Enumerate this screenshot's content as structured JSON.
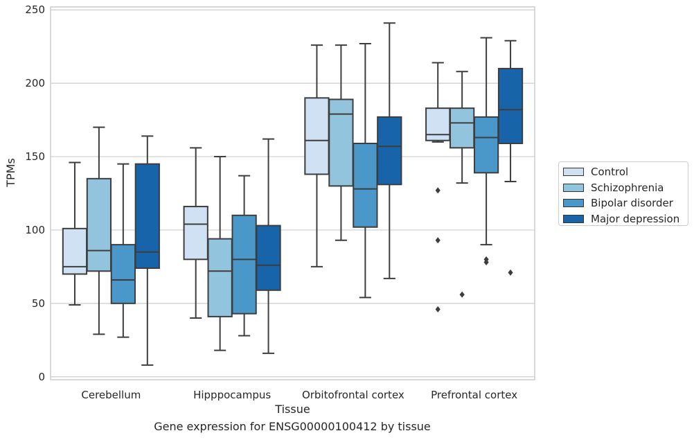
{
  "chart_data": {
    "type": "boxplot",
    "caption": "Gene expression for ENSG00000100412 by tissue",
    "xlabel": "Tissue",
    "ylabel": "TPMs",
    "ylim": [
      -2,
      252
    ],
    "yticks": [
      0,
      50,
      100,
      150,
      200,
      250
    ],
    "grid": "horizontal",
    "legend_position": "right",
    "categories": [
      "Cerebellum",
      "Hipppocampus",
      "Orbitofrontal cortex",
      "Prefrontal cortex"
    ],
    "series": [
      {
        "name": "Control",
        "color": "#cfe1f2",
        "boxes": [
          {
            "whislo": 49,
            "q1": 70,
            "med": 75,
            "q3": 101,
            "whishi": 146,
            "fliers": []
          },
          {
            "whislo": 40,
            "q1": 80,
            "med": 104,
            "q3": 116,
            "whishi": 156,
            "fliers": []
          },
          {
            "whislo": 75,
            "q1": 138,
            "med": 161,
            "q3": 190,
            "whishi": 226,
            "fliers": []
          },
          {
            "whislo": 160,
            "q1": 161,
            "med": 165,
            "q3": 183,
            "whishi": 214,
            "fliers": [
              127,
              93,
              46
            ]
          }
        ]
      },
      {
        "name": "Schizophrenia",
        "color": "#93c4de",
        "boxes": [
          {
            "whislo": 29,
            "q1": 72,
            "med": 86,
            "q3": 135,
            "whishi": 170,
            "fliers": []
          },
          {
            "whislo": 18,
            "q1": 41,
            "med": 72,
            "q3": 94,
            "whishi": 150,
            "fliers": []
          },
          {
            "whislo": 93,
            "q1": 130,
            "med": 179,
            "q3": 189,
            "whishi": 226,
            "fliers": []
          },
          {
            "whislo": 132,
            "q1": 156,
            "med": 173,
            "q3": 183,
            "whishi": 208,
            "fliers": [
              56
            ]
          }
        ]
      },
      {
        "name": "Bipolar disorder",
        "color": "#4a98c9",
        "boxes": [
          {
            "whislo": 27,
            "q1": 50,
            "med": 66,
            "q3": 90,
            "whishi": 145,
            "fliers": []
          },
          {
            "whislo": 28,
            "q1": 43,
            "med": 80,
            "q3": 110,
            "whishi": 137,
            "fliers": []
          },
          {
            "whislo": 54,
            "q1": 102,
            "med": 128,
            "q3": 159,
            "whishi": 227,
            "fliers": []
          },
          {
            "whislo": 90,
            "q1": 139,
            "med": 163,
            "q3": 177,
            "whishi": 231,
            "fliers": [
              80,
              78
            ]
          }
        ]
      },
      {
        "name": "Major depression",
        "color": "#1764ab",
        "boxes": [
          {
            "whislo": 8,
            "q1": 74,
            "med": 85,
            "q3": 145,
            "whishi": 164,
            "fliers": []
          },
          {
            "whislo": 16,
            "q1": 59,
            "med": 76,
            "q3": 103,
            "whishi": 162,
            "fliers": []
          },
          {
            "whislo": 67,
            "q1": 131,
            "med": 157,
            "q3": 177,
            "whishi": 241,
            "fliers": []
          },
          {
            "whislo": 133,
            "q1": 159,
            "med": 182,
            "q3": 210,
            "whishi": 229,
            "fliers": [
              71
            ]
          }
        ]
      }
    ]
  }
}
